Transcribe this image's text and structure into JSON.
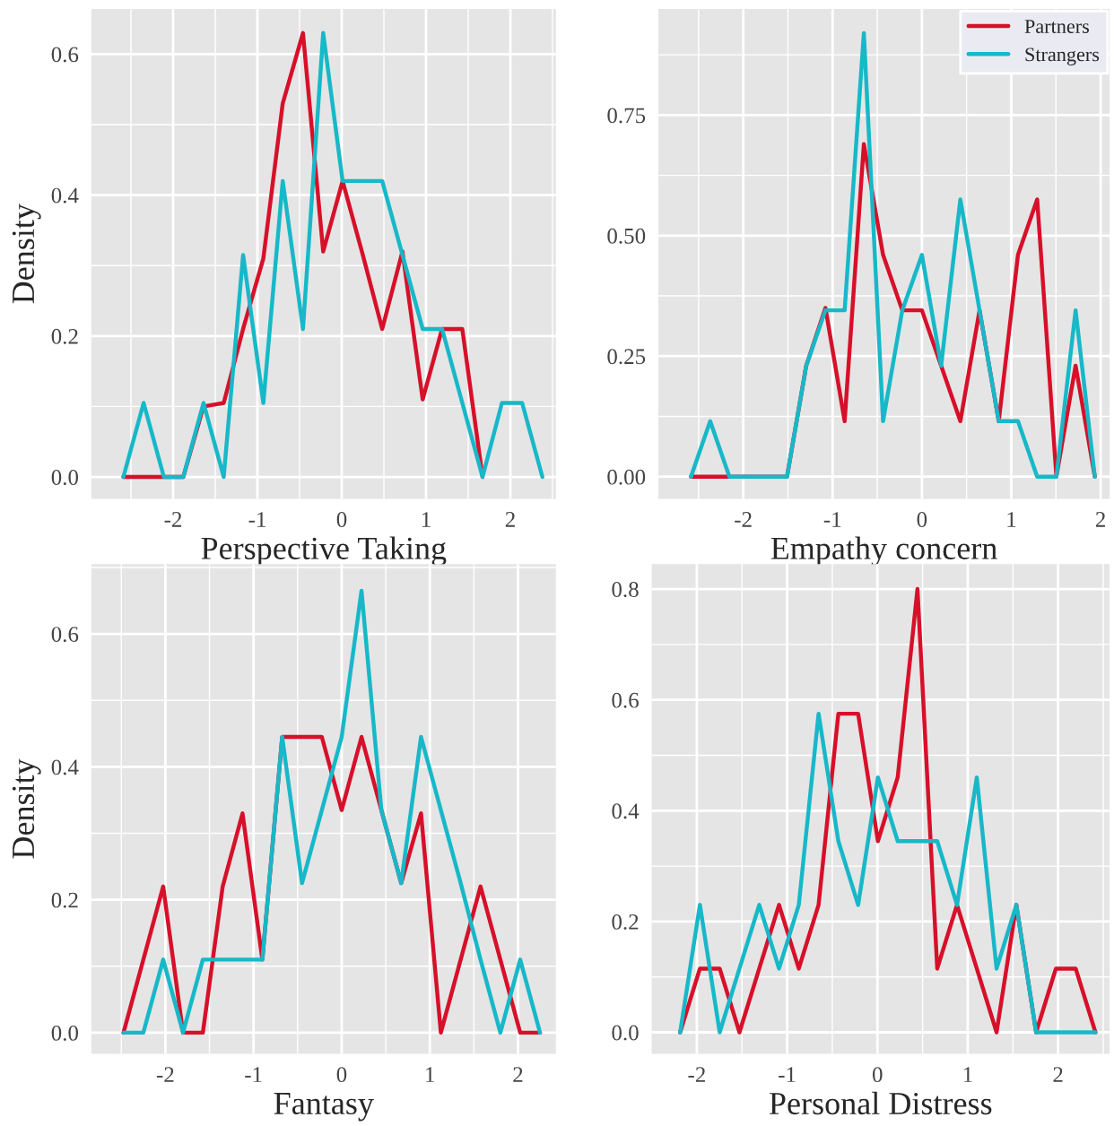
{
  "chart_data": [
    {
      "type": "line",
      "xlabel": "Perspective Taking",
      "ylabel": "Density",
      "grid": true,
      "xlim": [
        -2.97,
        2.54
      ],
      "ylim": [
        -0.031,
        0.664
      ],
      "xticks": [
        -2,
        -1,
        0,
        1,
        2
      ],
      "yticks": [
        {
          "value": 0,
          "label": "0.0"
        },
        0.2,
        0.4,
        0.6
      ],
      "x": [
        -2.59,
        -2.35,
        -2.11,
        -1.88,
        -1.64,
        -1.4,
        -1.17,
        -0.93,
        -0.7,
        -0.46,
        -0.22,
        0.01,
        0.25,
        0.48,
        0.72,
        0.96,
        1.19,
        1.43,
        1.67,
        1.9,
        2.14,
        2.38
      ],
      "series": [
        {
          "color": "#d7102a",
          "values": [
            0,
            0,
            0,
            0,
            0.1,
            0.105,
            0.21,
            0.31,
            0.53,
            0.63,
            0.32,
            0.42,
            0.315,
            0.21,
            0.32,
            0.11,
            0.21,
            0.21,
            0,
            null,
            null,
            null
          ]
        },
        {
          "color": "#17b8c8",
          "values": [
            0,
            0.105,
            0,
            0,
            0.105,
            0,
            0.315,
            0.105,
            0.42,
            0.21,
            0.63,
            0.42,
            0.42,
            0.42,
            0.315,
            0.21,
            0.21,
            0.105,
            0,
            0.105,
            0.105,
            0
          ]
        }
      ]
    },
    {
      "type": "line",
      "xlabel": "Empathy concern",
      "grid": true,
      "legend": "top right",
      "xlim": [
        -2.95,
        2.1
      ],
      "ylim": [
        -0.046,
        0.97
      ],
      "xticks": [
        -2,
        -1,
        0,
        1,
        2
      ],
      "yticks": [
        {
          "value": 0,
          "label": "0.00"
        },
        {
          "value": 0.25,
          "label": "0.25"
        },
        {
          "value": 0.5,
          "label": "0.50"
        },
        {
          "value": 0.75,
          "label": "0.75"
        }
      ],
      "x": [
        -2.585,
        -2.37,
        -2.155,
        -1.94,
        -1.725,
        -1.51,
        -1.295,
        -1.08,
        -0.865,
        -0.65,
        -0.435,
        -0.22,
        0.0,
        0.215,
        0.43,
        0.645,
        0.86,
        1.075,
        1.29,
        1.505,
        1.72,
        1.935
      ],
      "series": [
        {
          "name": "Partners",
          "color": "#d7102a",
          "values": [
            0,
            0,
            0,
            0,
            0,
            0,
            0.23,
            0.35,
            0.115,
            0.69,
            0.46,
            0.345,
            0.345,
            0.23,
            0.115,
            0.345,
            0.115,
            0.46,
            0.575,
            0,
            0.23,
            0
          ]
        },
        {
          "name": "Strangers",
          "color": "#17b8c8",
          "values": [
            0,
            0.115,
            0,
            0,
            0,
            0,
            0.23,
            0.345,
            0.345,
            0.92,
            0.115,
            0.345,
            0.46,
            0.23,
            0.575,
            0.345,
            0.115,
            0.115,
            0,
            0,
            0.345,
            0
          ]
        }
      ]
    },
    {
      "type": "line",
      "xlabel": "Fantasy",
      "ylabel": "Density",
      "grid": true,
      "xlim": [
        -2.84,
        2.43
      ],
      "ylim": [
        -0.032,
        0.705
      ],
      "xticks": [
        -2,
        -1,
        0,
        1,
        2
      ],
      "yticks": [
        {
          "value": 0,
          "label": "0.0"
        },
        0.2,
        0.4,
        0.6
      ],
      "x": [
        -2.475,
        -2.25,
        -2.025,
        -1.8,
        -1.575,
        -1.35,
        -1.125,
        -0.9,
        -0.675,
        -0.45,
        -0.225,
        0.0,
        0.225,
        0.45,
        0.675,
        0.9,
        1.125,
        1.35,
        1.575,
        1.8,
        2.025,
        2.25
      ],
      "series": [
        {
          "color": "#d7102a",
          "values": [
            0,
            0.11,
            0.22,
            0,
            0,
            0.22,
            0.33,
            0.11,
            0.445,
            0.445,
            0.445,
            0.335,
            0.445,
            0.335,
            0.225,
            0.33,
            0,
            0.11,
            0.22,
            0.11,
            0,
            0
          ]
        },
        {
          "color": "#17b8c8",
          "values": [
            0,
            0,
            0.11,
            0,
            0.11,
            0.11,
            0.11,
            0.11,
            0.445,
            0.225,
            0.335,
            0.445,
            0.665,
            0.335,
            0.225,
            0.445,
            0.335,
            0.225,
            0.11,
            0,
            0.11,
            0
          ]
        }
      ]
    },
    {
      "type": "line",
      "xlabel": "Personal Distress",
      "grid": true,
      "xlim": [
        -2.5,
        2.57
      ],
      "ylim": [
        -0.039,
        0.845
      ],
      "xticks": [
        -2,
        -1,
        0,
        1,
        2
      ],
      "yticks": [
        {
          "value": 0,
          "label": "0.0"
        },
        0.2,
        0.4,
        0.6,
        0.8
      ],
      "x": [
        -2.185,
        -1.966,
        -1.747,
        -1.528,
        -1.309,
        -1.09,
        -0.871,
        -0.652,
        -0.433,
        -0.214,
        0.005,
        0.224,
        0.443,
        0.662,
        0.881,
        1.1,
        1.319,
        1.538,
        1.757,
        1.976,
        2.195,
        2.414
      ],
      "series": [
        {
          "color": "#d7102a",
          "values": [
            0,
            0.115,
            0.115,
            0,
            0.115,
            0.23,
            0.115,
            0.23,
            0.575,
            0.575,
            0.345,
            0.46,
            0.8,
            0.115,
            0.23,
            0.115,
            0,
            0.23,
            0,
            0.115,
            0.115,
            0
          ]
        },
        {
          "color": "#17b8c8",
          "values": [
            0,
            0.23,
            0,
            0.115,
            0.23,
            0.115,
            0.23,
            0.575,
            0.345,
            0.23,
            0.46,
            0.345,
            0.345,
            0.345,
            0.23,
            0.46,
            0.115,
            0.23,
            0,
            0,
            0,
            0
          ]
        }
      ]
    }
  ]
}
